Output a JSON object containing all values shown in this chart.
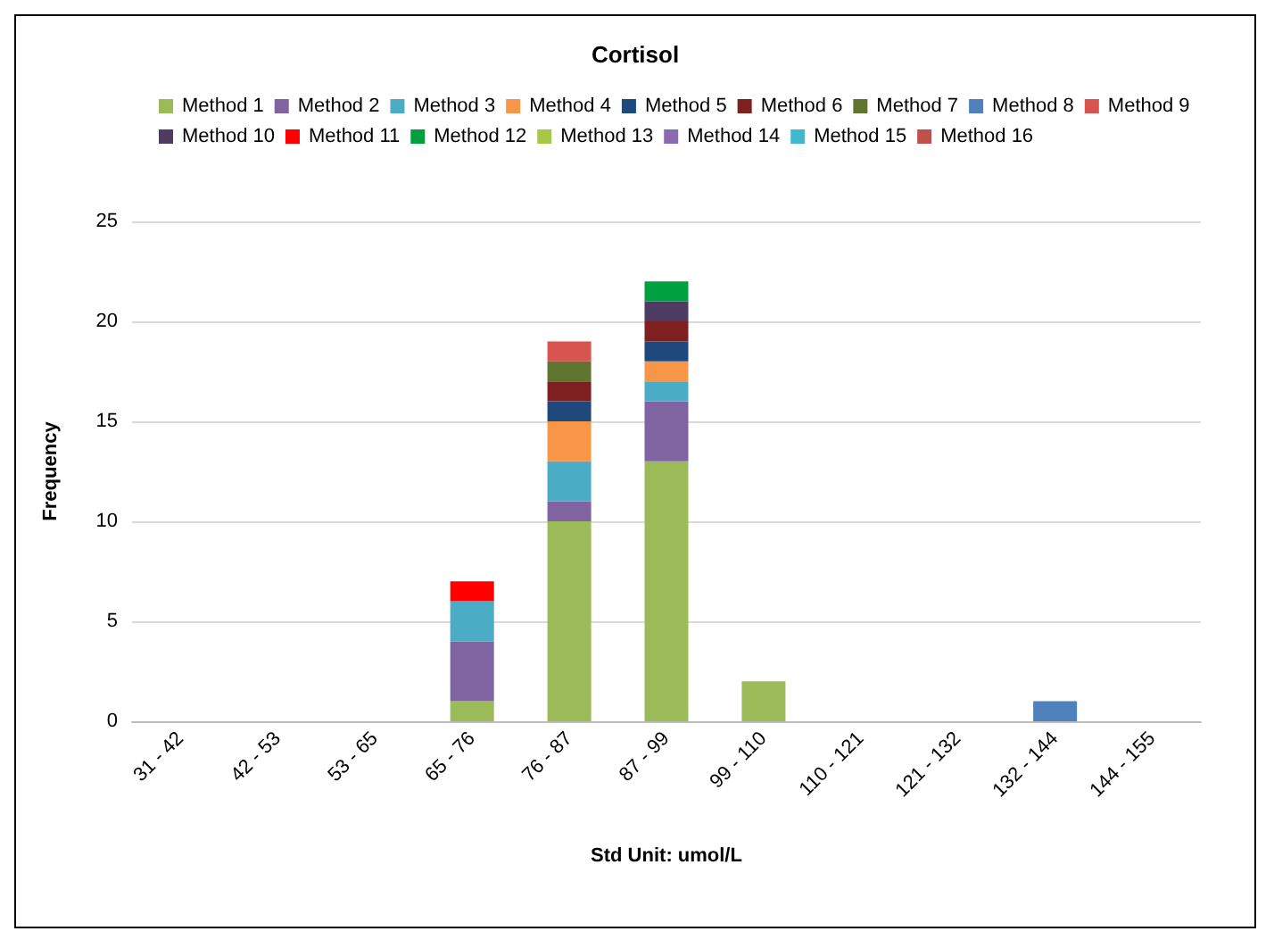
{
  "chart_data": {
    "type": "bar",
    "title": "Cortisol",
    "xlabel": "Std Unit: umol/L",
    "ylabel": "Frequency",
    "stacked": true,
    "grid": "y",
    "legend": "top",
    "ylim": [
      0,
      25
    ],
    "yticks": [
      0,
      5,
      10,
      15,
      20,
      25
    ],
    "categories": [
      "31 - 42",
      "42 - 53",
      "53 - 65",
      "65 - 76",
      "76 - 87",
      "87 - 99",
      "99 - 110",
      "110 - 121",
      "121 - 132",
      "132 - 144",
      "144 - 155"
    ],
    "series": [
      {
        "name": "Method 1",
        "color": "#9bbb59",
        "values": [
          0,
          0,
          0,
          1,
          10,
          13,
          2,
          0,
          0,
          0,
          0
        ]
      },
      {
        "name": "Method 2",
        "color": "#8064a2",
        "values": [
          0,
          0,
          0,
          3,
          1,
          3,
          0,
          0,
          0,
          0,
          0
        ]
      },
      {
        "name": "Method 3",
        "color": "#4bacc6",
        "values": [
          0,
          0,
          0,
          2,
          2,
          1,
          0,
          0,
          0,
          0,
          0
        ]
      },
      {
        "name": "Method 4",
        "color": "#f79646",
        "values": [
          0,
          0,
          0,
          0,
          2,
          1,
          0,
          0,
          0,
          0,
          0
        ]
      },
      {
        "name": "Method 5",
        "color": "#1f497d",
        "values": [
          0,
          0,
          0,
          0,
          1,
          1,
          0,
          0,
          0,
          0,
          0
        ]
      },
      {
        "name": "Method 6",
        "color": "#7f2020",
        "values": [
          0,
          0,
          0,
          0,
          1,
          1,
          0,
          0,
          0,
          0,
          0
        ]
      },
      {
        "name": "Method 7",
        "color": "#5f7530",
        "values": [
          0,
          0,
          0,
          0,
          1,
          0,
          0,
          0,
          0,
          0,
          0
        ]
      },
      {
        "name": "Method 8",
        "color": "#4f81bd",
        "values": [
          0,
          0,
          0,
          0,
          0,
          0,
          0,
          0,
          0,
          1,
          0
        ]
      },
      {
        "name": "Method 9",
        "color": "#d9534f",
        "values": [
          0,
          0,
          0,
          0,
          1,
          0,
          0,
          0,
          0,
          0,
          0
        ]
      },
      {
        "name": "Method 10",
        "color": "#4e3b62",
        "values": [
          0,
          0,
          0,
          0,
          0,
          1,
          0,
          0,
          0,
          0,
          0
        ]
      },
      {
        "name": "Method 11",
        "color": "#ff0000",
        "values": [
          0,
          0,
          0,
          1,
          0,
          0,
          0,
          0,
          0,
          0,
          0
        ]
      },
      {
        "name": "Method 12",
        "color": "#00a040",
        "values": [
          0,
          0,
          0,
          0,
          0,
          1,
          0,
          0,
          0,
          0,
          0
        ]
      },
      {
        "name": "Method 13",
        "color": "#a6c846",
        "values": [
          0,
          0,
          0,
          0,
          0,
          0,
          0,
          0,
          0,
          0,
          0
        ]
      },
      {
        "name": "Method 14",
        "color": "#8a6ab0",
        "values": [
          0,
          0,
          0,
          0,
          0,
          0,
          0,
          0,
          0,
          0,
          0
        ]
      },
      {
        "name": "Method 15",
        "color": "#3fb8d0",
        "values": [
          0,
          0,
          0,
          0,
          0,
          0,
          0,
          0,
          0,
          0,
          0
        ]
      },
      {
        "name": "Method 16",
        "color": "#c0504d",
        "values": [
          0,
          0,
          0,
          0,
          0,
          0,
          0,
          0,
          0,
          0,
          0
        ]
      }
    ]
  }
}
